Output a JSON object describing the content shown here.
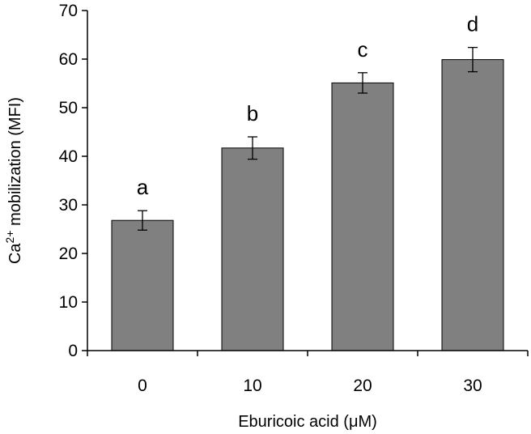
{
  "chart_data": {
    "type": "bar",
    "title": "",
    "categories": [
      "0",
      "10",
      "20",
      "30"
    ],
    "values": [
      26.8,
      41.7,
      55.1,
      59.9
    ],
    "errors": [
      2.0,
      2.3,
      2.1,
      2.5
    ],
    "significance_labels": [
      "a",
      "b",
      "c",
      "d"
    ],
    "xlabel": "Eburicoic acid (μM)",
    "ylabel": {
      "prefix": "Ca",
      "superscript": "2+",
      "suffix": " mobilization (MFI)"
    },
    "ylim": [
      0,
      70
    ],
    "yticks": [
      "0",
      "10",
      "20",
      "30",
      "40",
      "50",
      "60",
      "70"
    ],
    "bar_color": "#808080",
    "grid": false
  }
}
